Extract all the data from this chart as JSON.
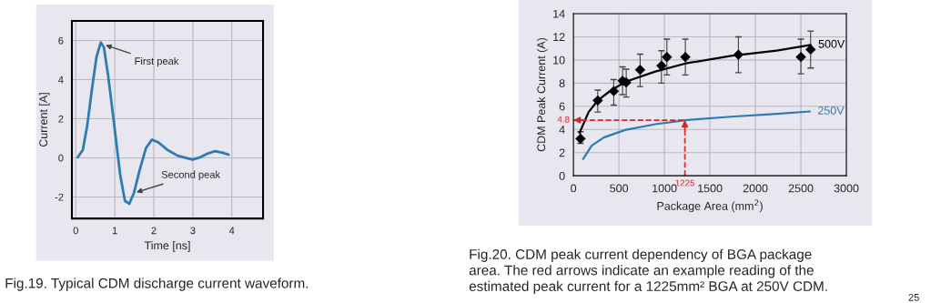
{
  "chart_data": [
    {
      "type": "line",
      "xlabel": "Time [ns]",
      "ylabel": "Current [A]",
      "x": [
        0.05,
        0.18,
        0.29,
        0.41,
        0.53,
        0.64,
        0.72,
        0.83,
        0.99,
        1.14,
        1.26,
        1.37,
        1.49,
        1.64,
        1.8,
        1.95,
        2.11,
        2.34,
        2.61,
        2.99,
        3.19,
        3.38,
        3.57,
        3.77,
        3.92
      ],
      "series": [
        {
          "color": "#2b7bb5",
          "values": [
            0.03,
            0.4,
            1.6,
            3.45,
            5.15,
            5.9,
            5.65,
            4.2,
            1.6,
            -0.9,
            -2.2,
            -2.35,
            -1.8,
            -0.6,
            0.5,
            0.93,
            0.8,
            0.42,
            0.11,
            -0.09,
            0.03,
            0.22,
            0.34,
            0.26,
            0.16
          ]
        }
      ],
      "xlim": [
        -0.1,
        4.8
      ],
      "ylim": [
        -3.1,
        7
      ],
      "xticks": [
        0,
        1,
        2,
        3,
        4
      ],
      "yticks": [
        -2,
        0,
        2,
        4,
        6
      ],
      "grid": true,
      "legend": false,
      "annotations": [
        {
          "text": "First peak",
          "x": 0.7,
          "y": 5.8
        },
        {
          "text": "Second peak",
          "x": 1.49,
          "y": -1.8
        },
        "Fig.19. Typical CDM discharge current waveform."
      ]
    },
    {
      "type": "line",
      "xlabel": "Package Area (mm$^{2}$)",
      "ylabel": "CDM Peak Current (A)",
      "series": [
        {
          "type": "scatter",
          "color": "#000000",
          "marker": "diamond",
          "x": [
            77,
            267,
            443,
            540,
            580,
            733,
            967,
            1027,
            1230,
            1813,
            2500,
            2607
          ],
          "values": [
            3.2,
            6.5,
            7.3,
            8.2,
            8.05,
            9.15,
            9.5,
            10.25,
            10.25,
            10.45,
            10.25,
            10.9
          ],
          "errors": [
            [
              2.8,
              3.8
            ],
            [
              5.5,
              7.4
            ],
            [
              6.1,
              8.3
            ],
            [
              7.0,
              9.4
            ],
            [
              6.8,
              9.2
            ],
            [
              7.7,
              10.5
            ],
            [
              8.0,
              10.8
            ],
            [
              8.7,
              11.8
            ],
            [
              8.7,
              11.8
            ],
            [
              8.9,
              12.0
            ],
            [
              8.8,
              11.8
            ],
            [
              9.3,
              12.5
            ]
          ]
        },
        {
          "name": "500V",
          "color": "#000000",
          "x": [
            67,
            167,
            267,
            400,
            567,
            900,
            1233,
            1733,
            2233,
            2607
          ],
          "values": [
            3.7,
            5.5,
            6.5,
            7.3,
            8.1,
            9.0,
            9.7,
            10.35,
            10.8,
            11.3
          ]
        },
        {
          "name": "250V",
          "color": "#2b7bb5",
          "x": [
            107,
            200,
            333,
            567,
            900,
            1230,
            1733,
            2233,
            2600
          ],
          "values": [
            1.45,
            2.6,
            3.3,
            3.95,
            4.45,
            4.8,
            5.1,
            5.35,
            5.55
          ]
        }
      ],
      "xlim": [
        0,
        3000
      ],
      "ylim": [
        0,
        14
      ],
      "xticks": [
        0,
        500,
        1000,
        1500,
        2000,
        2500,
        3000
      ],
      "yticks": [
        0,
        2,
        4,
        6,
        8,
        10,
        12,
        14
      ],
      "grid": true,
      "legend": false,
      "ref_lines": [
        {
          "axis": "y",
          "value": 4.8,
          "label": "4.8",
          "color": "#d62728",
          "line_style": "dashed"
        },
        {
          "axis": "x",
          "value": 1225,
          "label": "1225",
          "color": "#d62728",
          "line_style": "dashed"
        }
      ],
      "annotations": [
        "Fig.20. CDM peak current dependency of BGA package\narea. The red arrows indicate an example reading of the\nestimated peak current for a 1225mm² BGA at 250V CDM.",
        "25"
      ]
    }
  ]
}
